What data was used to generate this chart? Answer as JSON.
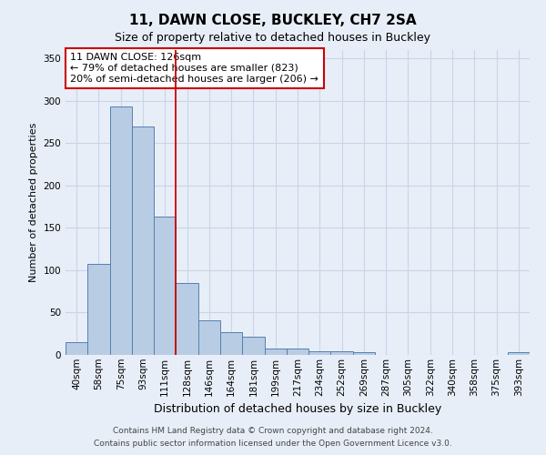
{
  "title": "11, DAWN CLOSE, BUCKLEY, CH7 2SA",
  "subtitle": "Size of property relative to detached houses in Buckley",
  "xlabel": "Distribution of detached houses by size in Buckley",
  "ylabel": "Number of detached properties",
  "categories": [
    "40sqm",
    "58sqm",
    "75sqm",
    "93sqm",
    "111sqm",
    "128sqm",
    "146sqm",
    "164sqm",
    "181sqm",
    "199sqm",
    "217sqm",
    "234sqm",
    "252sqm",
    "269sqm",
    "287sqm",
    "305sqm",
    "322sqm",
    "340sqm",
    "358sqm",
    "375sqm",
    "393sqm"
  ],
  "values": [
    15,
    108,
    293,
    270,
    163,
    85,
    41,
    27,
    21,
    7,
    7,
    4,
    4,
    3,
    0,
    0,
    0,
    0,
    0,
    0,
    3
  ],
  "bar_color": "#b8cce4",
  "bar_edge_color": "#5580b0",
  "bar_edge_width": 0.7,
  "grid_color": "#c8d4e8",
  "background_color": "#e8eef8",
  "ref_line_color": "#cc0000",
  "annotation_text": "11 DAWN CLOSE: 126sqm\n← 79% of detached houses are smaller (823)\n20% of semi-detached houses are larger (206) →",
  "annotation_box_color": "#ffffff",
  "annotation_box_edge": "#cc0000",
  "footnote1": "Contains HM Land Registry data © Crown copyright and database right 2024.",
  "footnote2": "Contains public sector information licensed under the Open Government Licence v3.0.",
  "ylim": [
    0,
    360
  ],
  "yticks": [
    0,
    50,
    100,
    150,
    200,
    250,
    300,
    350
  ],
  "title_fontsize": 11,
  "subtitle_fontsize": 9,
  "xlabel_fontsize": 9,
  "ylabel_fontsize": 8,
  "tick_fontsize": 7.5,
  "annot_fontsize": 8,
  "footnote_fontsize": 6.5
}
